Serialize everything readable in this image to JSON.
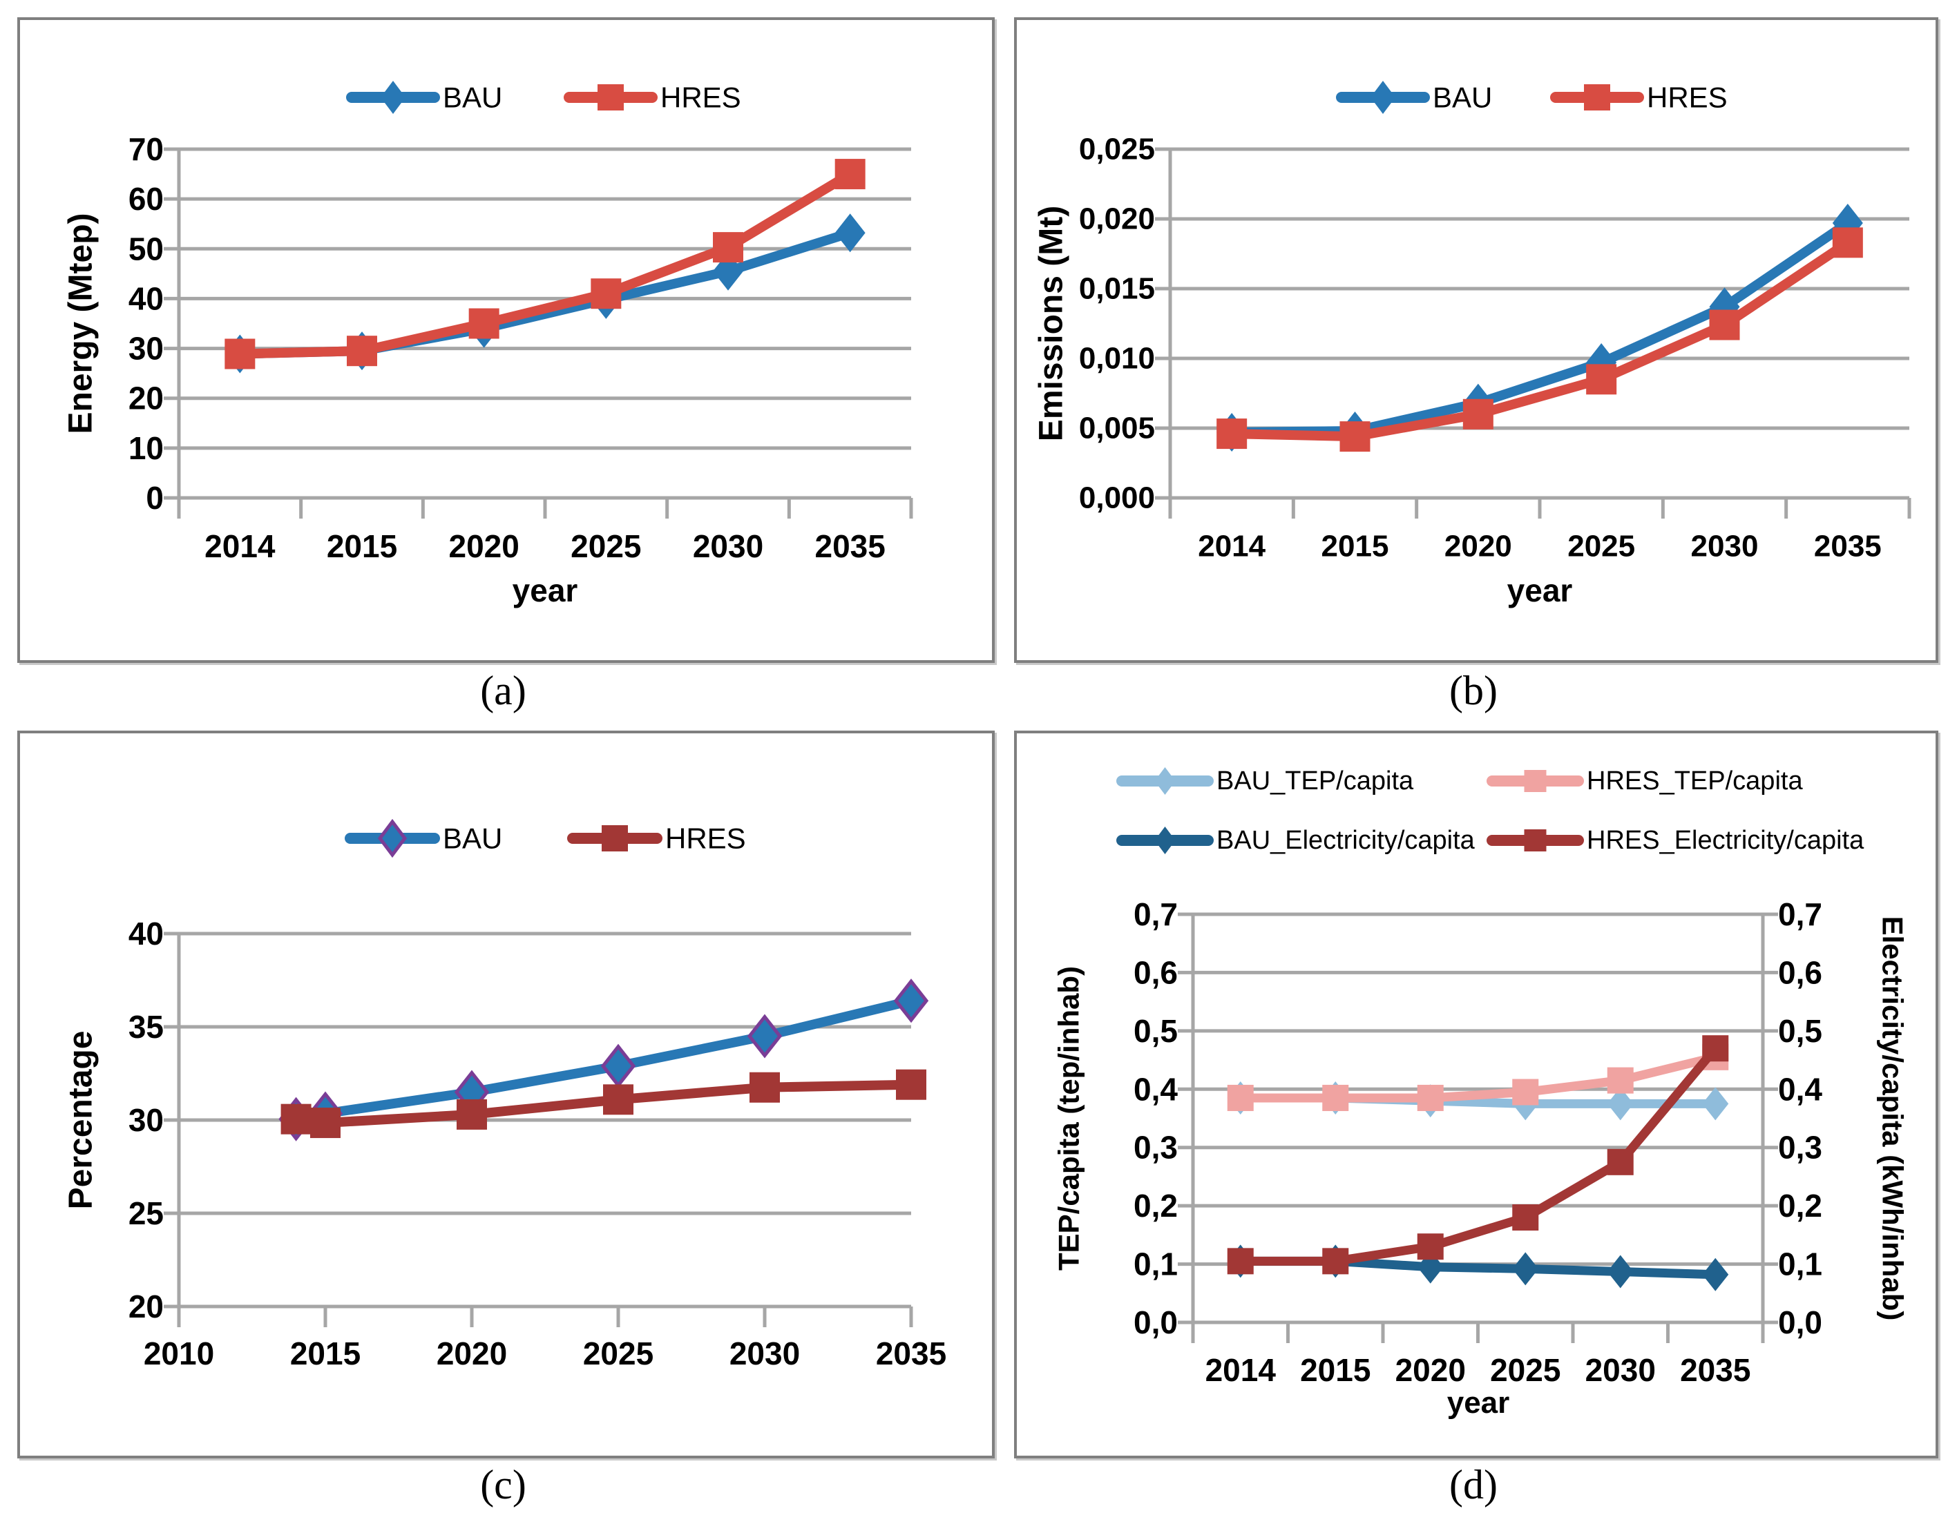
{
  "figure": {
    "captions": {
      "a": "(a)",
      "b": "(b)",
      "c": "(c)",
      "d": "(d)"
    }
  },
  "colors": {
    "bau_blue": "#2878B5",
    "hres_red": "#D84C42",
    "bau_diamond_outline_purple": "#7A3D96",
    "hres_dark_red": "#A23735",
    "bau_tep_light_blue": "#8FBCDB",
    "hres_tep_pink": "#F0A3A1",
    "bau_elec_dark_blue": "#20618D",
    "grid_gray": "#A6A6A6",
    "panel_border_gray": "#7F7F7F"
  },
  "chart_data": [
    {
      "id": "a",
      "type": "line",
      "title": "",
      "xlabel": "year",
      "ylabel": "Energy (Mtep)",
      "categories": [
        "2014",
        "2015",
        "2020",
        "2025",
        "2030",
        "2035"
      ],
      "series": [
        {
          "name": "BAU",
          "color": "#2878B5",
          "marker": "diamond",
          "values": [
            28.9,
            29.5,
            34.0,
            39.8,
            45.5,
            53.2
          ]
        },
        {
          "name": "HRES",
          "color": "#D84C42",
          "marker": "square",
          "values": [
            28.9,
            29.5,
            35.0,
            41.0,
            50.3,
            65.0
          ]
        }
      ],
      "ylim": [
        0,
        70
      ],
      "yticks": [
        {
          "v": 0,
          "label": "0"
        },
        {
          "v": 10,
          "label": "10"
        },
        {
          "v": 20,
          "label": "20"
        },
        {
          "v": 30,
          "label": "30"
        },
        {
          "v": 40,
          "label": "40"
        },
        {
          "v": 50,
          "label": "50"
        },
        {
          "v": 60,
          "label": "60"
        },
        {
          "v": 70,
          "label": "70"
        }
      ],
      "legend_position": "top",
      "grid": true
    },
    {
      "id": "b",
      "type": "line",
      "title": "",
      "xlabel": "year",
      "ylabel": "Emissions (Mt)",
      "categories": [
        "2014",
        "2015",
        "2020",
        "2025",
        "2030",
        "2035"
      ],
      "series": [
        {
          "name": "BAU",
          "color": "#2878B5",
          "marker": "diamond",
          "values": [
            0.0047,
            0.0048,
            0.0068,
            0.0097,
            0.0137,
            0.0197
          ]
        },
        {
          "name": "HRES",
          "color": "#D84C42",
          "marker": "square",
          "values": [
            0.0046,
            0.0044,
            0.006,
            0.0085,
            0.0124,
            0.0183
          ]
        }
      ],
      "ylim": [
        0,
        0.025
      ],
      "yticks": [
        {
          "v": 0,
          "label": "0,000"
        },
        {
          "v": 0.005,
          "label": "0,005"
        },
        {
          "v": 0.01,
          "label": "0,010"
        },
        {
          "v": 0.015,
          "label": "0,015"
        },
        {
          "v": 0.02,
          "label": "0,020"
        },
        {
          "v": 0.025,
          "label": "0,025"
        }
      ],
      "legend_position": "top",
      "grid": true
    },
    {
      "id": "c",
      "type": "line",
      "title": "",
      "xlabel": "",
      "ylabel": "Percentage",
      "x": [
        2014,
        2015,
        2020,
        2025,
        2030,
        2035
      ],
      "xlim": [
        2010,
        2035
      ],
      "xticks": [
        {
          "v": 2010,
          "label": "2010"
        },
        {
          "v": 2015,
          "label": "2015"
        },
        {
          "v": 2020,
          "label": "2020"
        },
        {
          "v": 2025,
          "label": "2025"
        },
        {
          "v": 2030,
          "label": "2030"
        },
        {
          "v": 2035,
          "label": "2035"
        }
      ],
      "series": [
        {
          "name": "BAU",
          "color": "#2878B5",
          "marker": "diamond",
          "marker_stroke": "#7A3D96",
          "values": [
            30.05,
            30.35,
            31.5,
            32.9,
            34.5,
            36.4
          ]
        },
        {
          "name": "HRES",
          "color": "#A23735",
          "marker": "square",
          "values": [
            30.05,
            29.85,
            30.3,
            31.1,
            31.75,
            31.9
          ]
        }
      ],
      "ylim": [
        20,
        40
      ],
      "yticks": [
        {
          "v": 20,
          "label": "20"
        },
        {
          "v": 25,
          "label": "25"
        },
        {
          "v": 30,
          "label": "30"
        },
        {
          "v": 35,
          "label": "35"
        },
        {
          "v": 40,
          "label": "40"
        }
      ],
      "legend_position": "top",
      "grid": true
    },
    {
      "id": "d",
      "type": "line",
      "title": "",
      "xlabel": "year",
      "ylabel_left": "TEP/capita (tep/inhab)",
      "ylabel_right": "Electricity/capita (kWh/inhab)",
      "categories": [
        "2014",
        "2015",
        "2020",
        "2025",
        "2030",
        "2035"
      ],
      "series": [
        {
          "name": "BAU_TEP/capita",
          "color": "#8FBCDB",
          "marker": "diamond",
          "values": [
            0.385,
            0.385,
            0.38,
            0.375,
            0.375,
            0.375
          ]
        },
        {
          "name": "HRES_TEP/capita",
          "color": "#F0A3A1",
          "marker": "square",
          "values": [
            0.385,
            0.385,
            0.385,
            0.395,
            0.415,
            0.455
          ]
        },
        {
          "name": "BAU_Electricity/capita",
          "color": "#20618D",
          "marker": "diamond",
          "values": [
            0.105,
            0.105,
            0.095,
            0.092,
            0.087,
            0.082
          ]
        },
        {
          "name": "HRES_Electricity/capita",
          "color": "#A23735",
          "marker": "square",
          "values": [
            0.105,
            0.105,
            0.13,
            0.18,
            0.275,
            0.47
          ]
        }
      ],
      "ylim": [
        0,
        0.7
      ],
      "yticks": [
        {
          "v": 0.0,
          "label": "0,0"
        },
        {
          "v": 0.1,
          "label": "0,1"
        },
        {
          "v": 0.2,
          "label": "0,2"
        },
        {
          "v": 0.3,
          "label": "0,3"
        },
        {
          "v": 0.4,
          "label": "0,4"
        },
        {
          "v": 0.5,
          "label": "0,5"
        },
        {
          "v": 0.6,
          "label": "0,6"
        },
        {
          "v": 0.7,
          "label": "0,7"
        }
      ],
      "secondary_axis": true,
      "legend_position": "top-two-rows",
      "grid": true
    }
  ]
}
